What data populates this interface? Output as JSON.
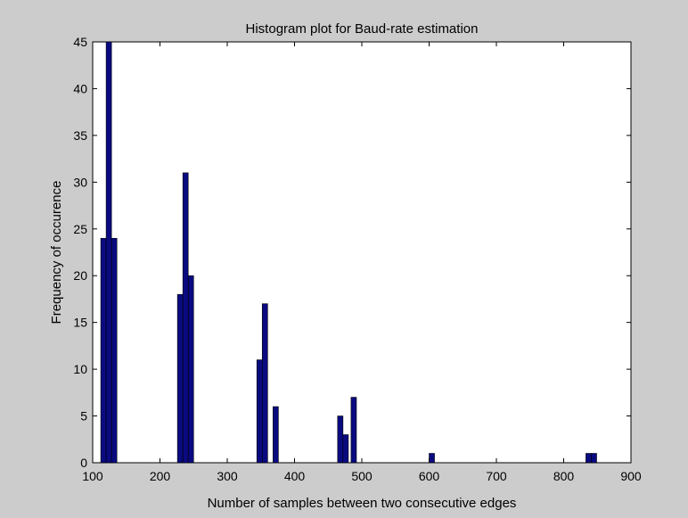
{
  "chart_data": {
    "type": "bar",
    "title": "Histogram plot for Baud-rate estimation",
    "xlabel": "Number of samples between two consecutive edges",
    "ylabel": "Frequency of occurence",
    "xlim": [
      100,
      900
    ],
    "ylim": [
      0,
      45
    ],
    "xticks": [
      100,
      200,
      300,
      400,
      500,
      600,
      700,
      800,
      900
    ],
    "yticks": [
      0,
      5,
      10,
      15,
      20,
      25,
      30,
      35,
      40,
      45
    ],
    "bin_width": 8,
    "grid": false,
    "bars": [
      {
        "x": 116,
        "value": 24
      },
      {
        "x": 124,
        "value": 45
      },
      {
        "x": 132,
        "value": 24
      },
      {
        "x": 230,
        "value": 18
      },
      {
        "x": 238,
        "value": 31
      },
      {
        "x": 246,
        "value": 20
      },
      {
        "x": 348,
        "value": 11
      },
      {
        "x": 356,
        "value": 17
      },
      {
        "x": 372,
        "value": 6
      },
      {
        "x": 468,
        "value": 5
      },
      {
        "x": 476,
        "value": 3
      },
      {
        "x": 488,
        "value": 7
      },
      {
        "x": 604,
        "value": 1
      },
      {
        "x": 837,
        "value": 1
      },
      {
        "x": 845,
        "value": 1
      }
    ],
    "colors": {
      "bar": "#0a0a80",
      "axes_bg": "#ffffff",
      "figure_bg": "#cccccc"
    }
  }
}
